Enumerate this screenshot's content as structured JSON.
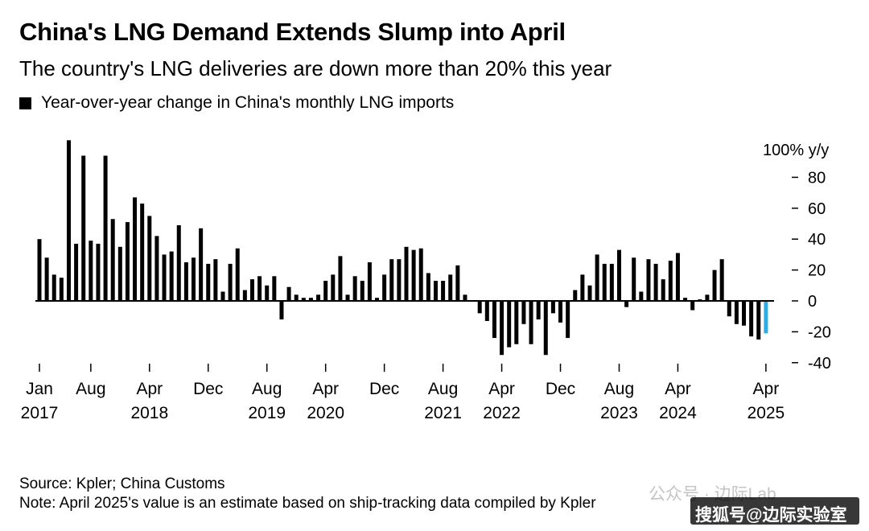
{
  "title": "China's LNG Demand Extends Slump into April",
  "subtitle": "The country's LNG deliveries are down more than 20% this year",
  "legend": {
    "label": "Year-over-year change in China's monthly LNG imports"
  },
  "footer": {
    "source": "Source: Kpler; China Customs",
    "note": "Note: April 2025's value is an estimate based on ship-tracking data compiled by Kpler"
  },
  "watermark": {
    "line1": "公众号 · 边际Lab",
    "line2": "搜狐号@边际实验室"
  },
  "colors": {
    "bar": "#000000",
    "estimate": "#29aee6",
    "axis": "#000000"
  },
  "chart_data": {
    "type": "bar",
    "start_month": "2017-01",
    "ylim": [
      -40,
      100
    ],
    "yticks": [
      80,
      60,
      40,
      20,
      0,
      -20,
      -40
    ],
    "ytick_labels": [
      "80",
      "60",
      "40",
      "20",
      "0",
      "-20",
      "-40"
    ],
    "y_unit_label": "100% y/y",
    "xtick_labels": [
      {
        "month": "Jan",
        "year": "2017",
        "index": 0
      },
      {
        "month": "Aug",
        "year": "",
        "index": 7
      },
      {
        "month": "Apr",
        "year": "2018",
        "index": 15
      },
      {
        "month": "Dec",
        "year": "",
        "index": 23
      },
      {
        "month": "Aug",
        "year": "2019",
        "index": 31
      },
      {
        "month": "Apr",
        "year": "2020",
        "index": 39
      },
      {
        "month": "Dec",
        "year": "",
        "index": 47
      },
      {
        "month": "Aug",
        "year": "2021",
        "index": 55
      },
      {
        "month": "Apr",
        "year": "2022",
        "index": 63
      },
      {
        "month": "Dec",
        "year": "",
        "index": 71
      },
      {
        "month": "Aug",
        "year": "2023",
        "index": 79
      },
      {
        "month": "Apr",
        "year": "2024",
        "index": 87
      },
      {
        "month": "Apr",
        "year": "2025",
        "index": 99
      }
    ],
    "series": [
      {
        "values": [
          40,
          28,
          17,
          15,
          104,
          37,
          94,
          39,
          37,
          94,
          53,
          35,
          51,
          67,
          63,
          55,
          42,
          30,
          32,
          49,
          25,
          28,
          47,
          24,
          27,
          6,
          24,
          34,
          7,
          14,
          16,
          10,
          16,
          -12,
          9,
          4,
          2,
          2,
          4,
          13,
          17,
          29,
          4,
          16,
          13,
          25,
          2,
          17,
          27,
          27,
          35,
          33,
          34,
          18,
          13,
          13,
          17,
          23,
          4,
          0,
          -8,
          -13,
          -24,
          -35,
          -30,
          -28,
          -15,
          -28,
          -12,
          -35,
          -8,
          -14,
          -24,
          7,
          17,
          10,
          30,
          24,
          24,
          33,
          -4,
          28,
          6,
          27,
          24,
          14,
          26,
          31,
          2,
          -6,
          1,
          4,
          20,
          27,
          -10,
          -15,
          -16,
          -23,
          -25,
          -21
        ],
        "estimate_index": 99
      }
    ]
  }
}
